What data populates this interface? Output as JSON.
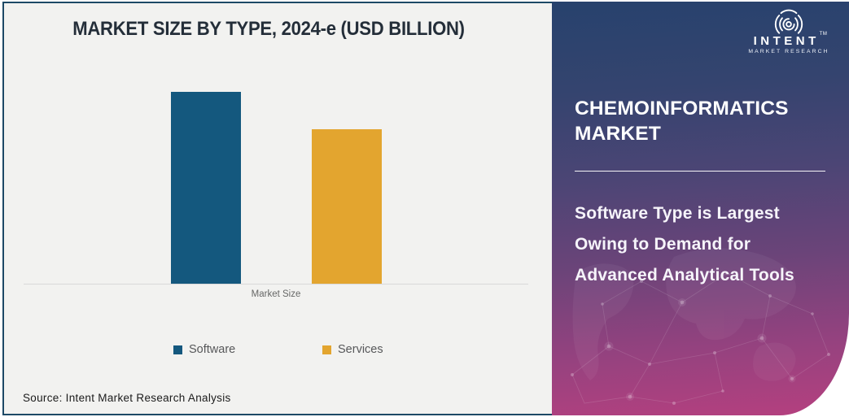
{
  "page": {
    "source_note": "Source: Intent Market Research Analysis"
  },
  "chart_data": {
    "type": "bar",
    "title": "MARKET SIZE BY TYPE, 2024-e (USD BILLION)",
    "categories": [
      "Software",
      "Services"
    ],
    "values": [
      100,
      80.5
    ],
    "value_note": "no numeric axis or data labels shown; values are relative index (% of largest bar)",
    "xlabel": "Market Size",
    "ylabel": "",
    "grid": false,
    "legend_position": "bottom",
    "bar_colors": [
      "#14587E",
      "#E3A52F"
    ],
    "axis_line_color": "#D9D9D9",
    "legend": [
      {
        "label": "Software",
        "color": "#14587E"
      },
      {
        "label": "Services",
        "color": "#E3A52F"
      }
    ]
  },
  "side_panel": {
    "title": "CHEMOINFORMATICS MARKET",
    "subtitle": "Software Type is Largest Owing to Demand for Advanced Analytical Tools",
    "gradient_top_color": "#27426D",
    "gradient_bottom_color": "#B5407F",
    "logo": {
      "brand": "INTENT",
      "brand_sub": "MARKET RESEARCH",
      "trademark": "TM"
    }
  },
  "frame": {
    "border_color": "#1D4966",
    "card_background": "#F2F2F0"
  }
}
